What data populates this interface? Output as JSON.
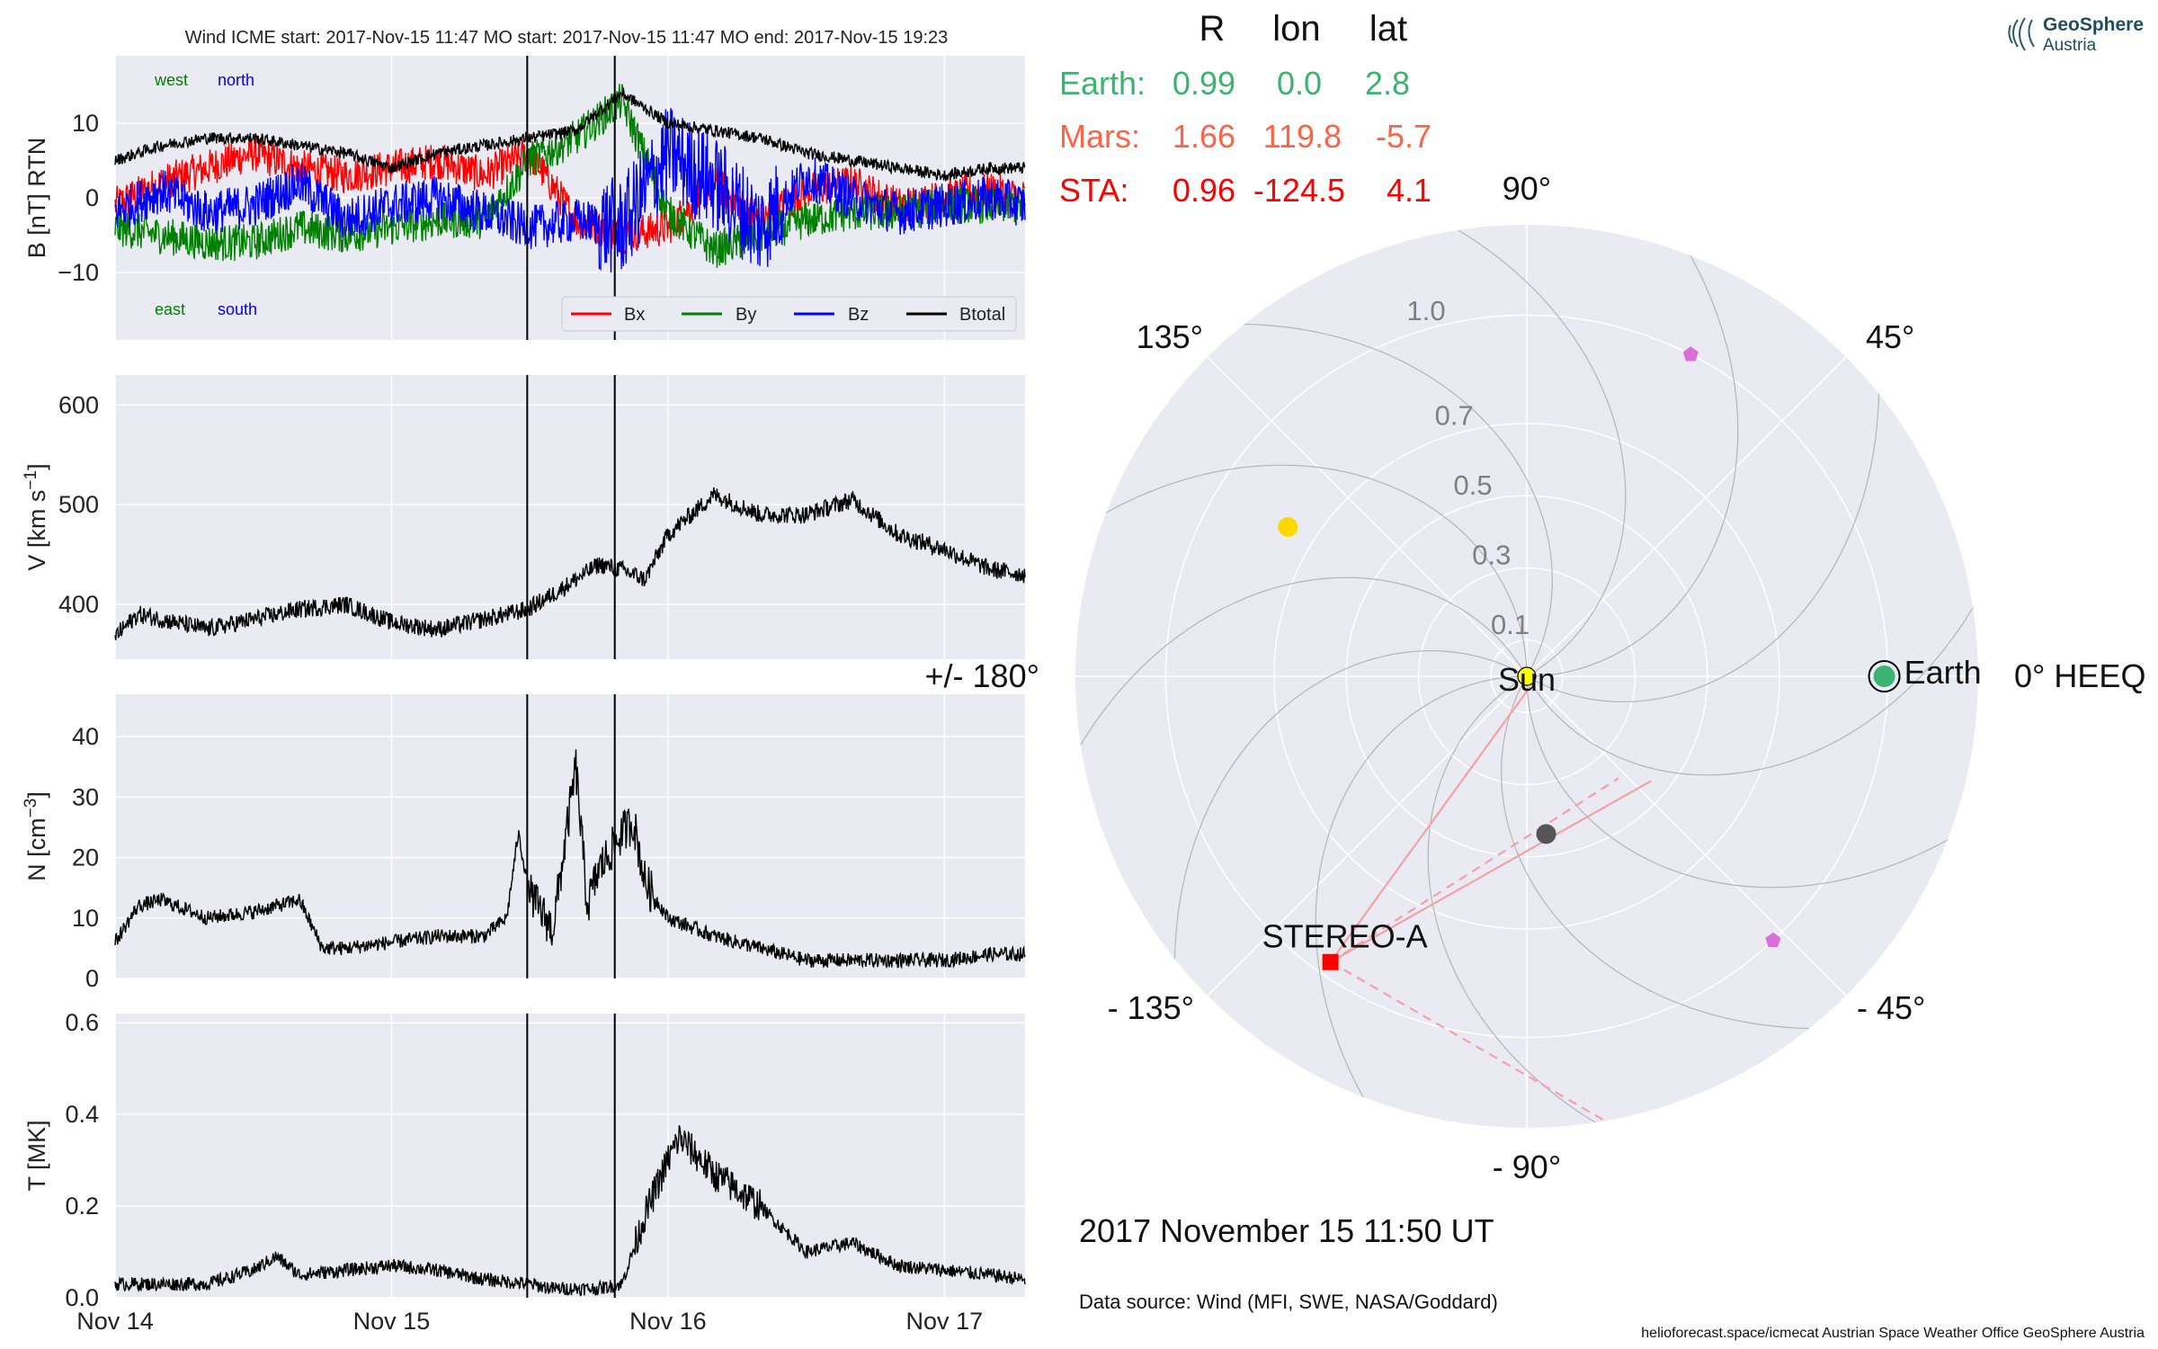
{
  "title": "Wind    ICME start: 2017-Nov-15 11:47   MO start: 2017-Nov-15 11:47   MO end: 2017-Nov-15 19:23",
  "logo": {
    "name": "GeoSphere",
    "sub": "Austria"
  },
  "colors": {
    "bx": "#ff0000",
    "by": "#008000",
    "bz": "#0000ff",
    "btot": "#000000",
    "earth": "#3cb371",
    "mars": "#ff6347",
    "sta": "#ff0000",
    "panel_bg": "#eaeaf2",
    "grid": "#ffffff"
  },
  "chart_data": [
    {
      "type": "line",
      "name": "magnetic-field",
      "ylabel": "B [nT] RTN",
      "ylim": [
        -19,
        19
      ],
      "yticks": [
        10,
        0,
        -10
      ],
      "ytick_labels": [
        "10",
        "0",
        "−10"
      ],
      "direction_labels": {
        "top_left": "west",
        "top_right": "north",
        "bottom_left": "east",
        "bottom_right": "south"
      },
      "legend": [
        "Bx",
        "By",
        "Bz",
        "Btotal"
      ],
      "legend_position": "lower-right",
      "x_range_days": [
        "2017-11-14 00:00",
        "2017-11-17 07:00"
      ],
      "vertical_lines": [
        "2017-11-15 11:47",
        "2017-11-15 19:23"
      ],
      "series": [
        {
          "name": "Bx",
          "x_hours": [
            0,
            4,
            8,
            12,
            16,
            20,
            24,
            28,
            32,
            36,
            40,
            44,
            48,
            52,
            56,
            60,
            64,
            68,
            72,
            76,
            79
          ],
          "values": [
            -1,
            2,
            4,
            6,
            4,
            3,
            4,
            5,
            3,
            6,
            -3,
            -5,
            -4,
            2,
            -3,
            1,
            2,
            -1,
            0,
            1,
            0
          ]
        },
        {
          "name": "By",
          "x_hours": [
            0,
            4,
            8,
            12,
            16,
            20,
            24,
            28,
            32,
            36,
            40,
            44,
            48,
            52,
            56,
            60,
            64,
            68,
            72,
            76,
            79
          ],
          "values": [
            -4,
            -5,
            -6,
            -6,
            -4,
            -5,
            -4,
            -3,
            -3,
            5,
            8,
            13,
            -2,
            -7,
            -5,
            -3,
            -2,
            -2,
            -1,
            -1,
            -1
          ]
        },
        {
          "name": "Bz",
          "x_hours": [
            0,
            4,
            8,
            12,
            16,
            20,
            24,
            28,
            32,
            36,
            40,
            44,
            48,
            52,
            56,
            60,
            64,
            68,
            72,
            76,
            79
          ],
          "values": [
            -2,
            1,
            -2,
            -1,
            2,
            -3,
            -1,
            0,
            -2,
            -4,
            -3,
            -4,
            6,
            2,
            -4,
            3,
            0,
            -2,
            -1,
            0,
            -1
          ]
        },
        {
          "name": "Btotal",
          "x_hours": [
            0,
            4,
            8,
            12,
            16,
            20,
            24,
            28,
            32,
            36,
            40,
            44,
            48,
            52,
            56,
            60,
            64,
            68,
            72,
            76,
            79
          ],
          "values": [
            5,
            7,
            8,
            8,
            7,
            6,
            4,
            6,
            7,
            8,
            9,
            14,
            10,
            9,
            8,
            6,
            5,
            4,
            3,
            4,
            4
          ]
        }
      ]
    },
    {
      "type": "line",
      "name": "velocity",
      "ylabel": "V [km s^-1]",
      "ylim": [
        345,
        630
      ],
      "yticks": [
        600,
        500,
        400
      ],
      "ytick_labels": [
        "600",
        "500",
        "400"
      ],
      "series": [
        {
          "name": "V",
          "x_hours": [
            0,
            2,
            4,
            8,
            12,
            16,
            20,
            24,
            28,
            32,
            34,
            35.8,
            38,
            42,
            44,
            46,
            48,
            52,
            56,
            60,
            64,
            68,
            72,
            76,
            79
          ],
          "values": [
            368,
            390,
            385,
            375,
            385,
            395,
            400,
            382,
            375,
            385,
            390,
            395,
            410,
            440,
            435,
            425,
            470,
            510,
            490,
            490,
            505,
            470,
            455,
            435,
            430
          ]
        }
      ]
    },
    {
      "type": "line",
      "name": "density",
      "ylabel": "N [cm^-3]",
      "ylim": [
        0,
        47
      ],
      "yticks": [
        40,
        30,
        20,
        10,
        0
      ],
      "ytick_labels": [
        "40",
        "30",
        "20",
        "10",
        "0"
      ],
      "series": [
        {
          "name": "N",
          "x_hours": [
            0,
            2,
            4,
            8,
            12,
            16,
            18,
            20,
            24,
            28,
            32,
            34,
            35,
            36,
            38,
            40,
            41,
            42,
            44,
            45,
            46,
            48,
            52,
            56,
            60,
            64,
            68,
            72,
            76,
            79
          ],
          "values": [
            6,
            12,
            13,
            10,
            11,
            13,
            5,
            5,
            6,
            7,
            7,
            10,
            24,
            14,
            8,
            35,
            12,
            18,
            24,
            26,
            16,
            10,
            7,
            5,
            3,
            3,
            3,
            3,
            4,
            4
          ]
        }
      ]
    },
    {
      "type": "line",
      "name": "temperature",
      "ylabel": "T [MK]",
      "ylim": [
        0,
        0.62
      ],
      "yticks": [
        0.6,
        0.4,
        0.2,
        0.0
      ],
      "ytick_labels": [
        "0.6",
        "0.4",
        "0.2",
        "0.0"
      ],
      "xtick_labels": [
        "Nov 14",
        "Nov 15",
        "Nov 16",
        "Nov 17"
      ],
      "series": [
        {
          "name": "T",
          "x_hours": [
            0,
            4,
            8,
            12,
            14,
            16,
            20,
            24,
            28,
            32,
            36,
            38,
            42,
            44,
            46,
            48,
            49,
            52,
            56,
            60,
            64,
            68,
            72,
            76,
            79
          ],
          "values": [
            0.03,
            0.03,
            0.03,
            0.06,
            0.09,
            0.05,
            0.06,
            0.07,
            0.06,
            0.04,
            0.03,
            0.02,
            0.02,
            0.03,
            0.18,
            0.3,
            0.35,
            0.27,
            0.2,
            0.1,
            0.12,
            0.07,
            0.06,
            0.05,
            0.04
          ]
        }
      ]
    },
    {
      "type": "scatter",
      "name": "polar-position-plot",
      "angle_labels": [
        "90°",
        "45°",
        "0° HEEQ",
        "- 45°",
        "- 90°",
        "- 135°",
        "+/- 180°",
        "135°"
      ],
      "radial_ticks": [
        "1.0",
        "0.7",
        "0.5",
        "0.3",
        "0.1"
      ],
      "rmax": 1.25,
      "points": [
        {
          "name": "Sun",
          "label": "Sun",
          "r": 0.0,
          "lon": 0.0,
          "color": "#ffff00"
        },
        {
          "name": "Earth",
          "label": "Earth",
          "r": 0.99,
          "lon": 0.0,
          "color": "#3cb371"
        },
        {
          "name": "STEREO-A",
          "label": "STEREO-A",
          "r": 0.96,
          "lon": -124.5,
          "color": "#ff0000"
        },
        {
          "name": "yellow-planet",
          "r": 0.78,
          "lon": 148,
          "color": "#ffd700"
        },
        {
          "name": "gray-planet",
          "r": 0.44,
          "lon": -83,
          "color": "#555555"
        },
        {
          "name": "pentagon-1",
          "r": 1.0,
          "lon": 63,
          "color": "#da70d6"
        },
        {
          "name": "pentagon-2",
          "r": 1.0,
          "lon": -47,
          "color": "#da70d6"
        }
      ]
    }
  ],
  "positions_table": {
    "headers": [
      "R",
      "lon",
      "lat"
    ],
    "rows": [
      {
        "label": "Earth:",
        "R": "0.99",
        "lon": "0.0",
        "lat": "2.8",
        "color": "#3cb371"
      },
      {
        "label": "Mars:",
        "R": "1.66",
        "lon": "119.8",
        "lat": "-5.7",
        "color": "#ff6347"
      },
      {
        "label": "STA:",
        "R": "0.96",
        "lon": "-124.5",
        "lat": "4.1",
        "color": "#ff0000"
      }
    ]
  },
  "date_text": "2017 November 15  11:50 UT",
  "data_source": "Data source: Wind (MFI, SWE, NASA/Goddard)",
  "footer": "helioforecast.space/icmecat   Austrian Space Weather Office   GeoSphere Austria"
}
